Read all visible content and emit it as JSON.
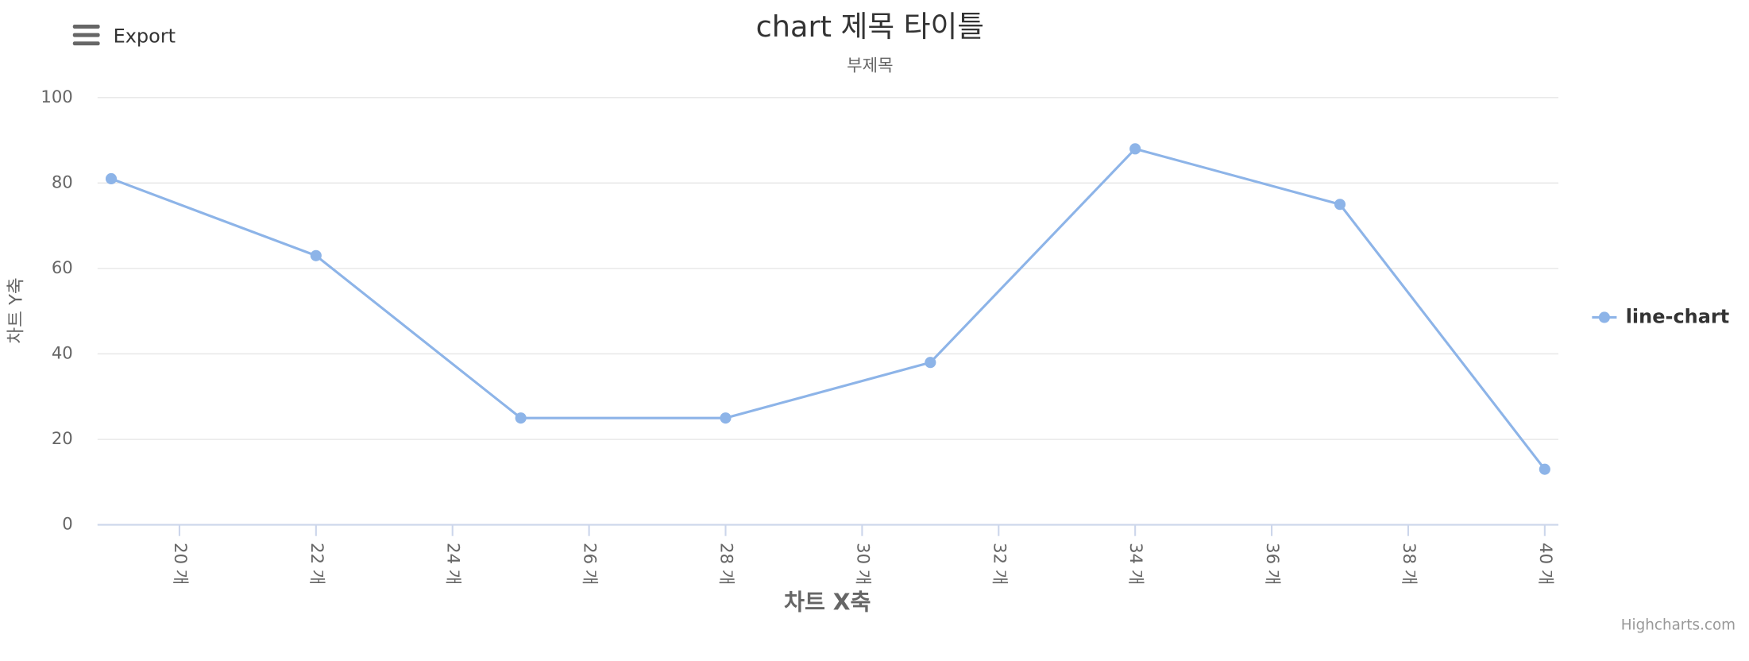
{
  "chart_data": {
    "type": "line",
    "title": "chart 제목 타이틀",
    "subtitle": "부제목",
    "x_label": "차트 X축",
    "y_label": "차트 Y축",
    "export_label": "Export",
    "credits": "Highcharts.com",
    "x": [
      19,
      22,
      25,
      28,
      31,
      34,
      37,
      40
    ],
    "series": [
      {
        "name": "line-chart",
        "color": "#8db4e8",
        "values": [
          81,
          63,
          25,
          25,
          38,
          88,
          75,
          13
        ]
      }
    ],
    "xlim": [
      18.8,
      40.2
    ],
    "xticks": [
      {
        "value": 20,
        "label": "20 개"
      },
      {
        "value": 22,
        "label": "22 개"
      },
      {
        "value": 24,
        "label": "24 개"
      },
      {
        "value": 26,
        "label": "26 개"
      },
      {
        "value": 28,
        "label": "28 개"
      },
      {
        "value": 30,
        "label": "30 개"
      },
      {
        "value": 32,
        "label": "32 개"
      },
      {
        "value": 34,
        "label": "34 개"
      },
      {
        "value": 36,
        "label": "36 개"
      },
      {
        "value": 38,
        "label": "38 개"
      },
      {
        "value": 40,
        "label": "40 개"
      }
    ],
    "ylim": [
      0,
      100
    ],
    "yticks": [
      0,
      20,
      40,
      60,
      80,
      100
    ],
    "grid": true,
    "legend": "right"
  }
}
